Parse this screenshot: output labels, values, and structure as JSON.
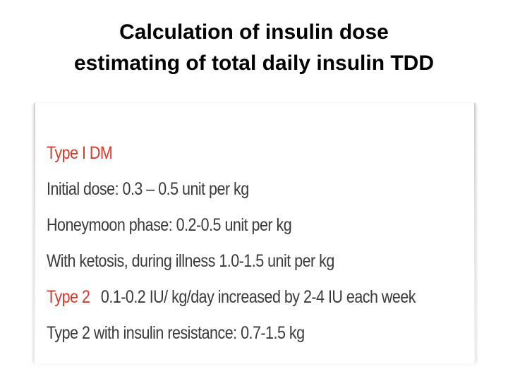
{
  "title": {
    "line1": "Calculation of insulin dose",
    "line2": "estimating of total daily insulin TDD"
  },
  "content": {
    "type1_heading": "Type I DM",
    "initial_dose": "Initial dose: 0.3 – 0.5 unit per kg",
    "honeymoon": "Honeymoon phase: 0.2-0.5 unit per kg",
    "ketosis": "With ketosis, during illness 1.0-1.5 unit per kg",
    "type2_label": "Type 2",
    "type2_text": "0.1-0.2 IU/ kg/day increased by 2-4 IU each week",
    "type2_resistance": "Type 2 with insulin resistance: 0.7-1.5 kg"
  },
  "colors": {
    "heading_red": "#d63a2a",
    "body_text": "#3a3a3a"
  }
}
